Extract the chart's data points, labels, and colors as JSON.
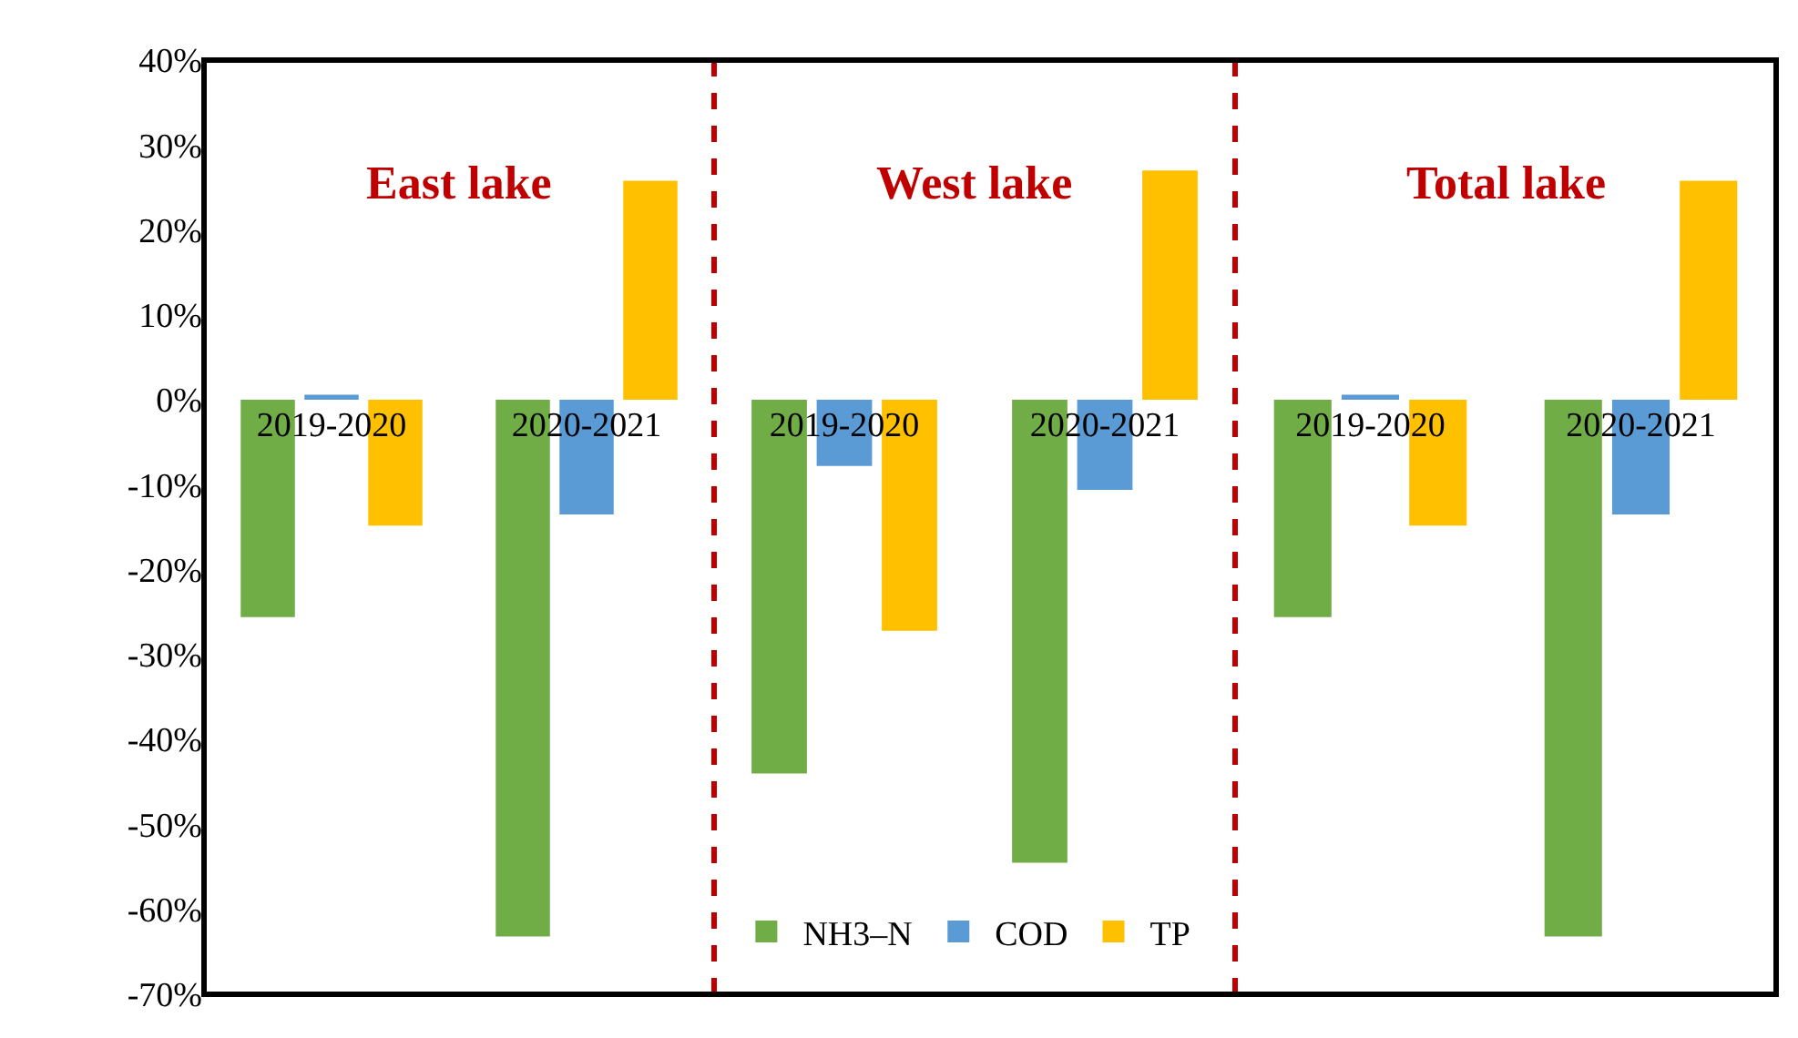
{
  "chart_data": [
    {
      "type": "bar",
      "title": "East lake",
      "categories": [
        "2019-2020",
        "2020-2021"
      ],
      "legend": "bottom",
      "ylim": [
        -70,
        40
      ],
      "yticks": [
        {
          "value": 40,
          "label": "40%"
        },
        {
          "value": 30,
          "label": "30%"
        },
        {
          "value": 20,
          "label": "20%"
        },
        {
          "value": 10,
          "label": "10%"
        },
        {
          "value": 0,
          "label": "0%"
        },
        {
          "value": -10,
          "label": "-10%"
        },
        {
          "value": -20,
          "label": "-20%"
        },
        {
          "value": -30,
          "label": "-30%"
        },
        {
          "value": -40,
          "label": "-40%"
        },
        {
          "value": -50,
          "label": "-50%"
        },
        {
          "value": -60,
          "label": "-60%"
        },
        {
          "value": -70,
          "label": "-70%"
        }
      ],
      "series": [
        {
          "name": "NH3–N",
          "color": "#70ad47",
          "values": [
            -25.6,
            -63.2
          ]
        },
        {
          "name": "COD",
          "color": "#5b9bd5",
          "values": [
            0.6,
            -13.5
          ]
        },
        {
          "name": "TP",
          "color": "#ffc000",
          "values": [
            -14.8,
            25.8
          ]
        }
      ]
    },
    {
      "type": "bar",
      "title": "West lake",
      "categories": [
        "2019-2020",
        "2020-2021"
      ],
      "tick_labels": "x",
      "ylim": [
        -70,
        40
      ],
      "series": [
        {
          "color": "#70ad47",
          "values": [
            -44,
            -54.5
          ]
        },
        {
          "color": "#5b9bd5",
          "values": [
            -7.8,
            -10.6
          ]
        },
        {
          "color": "#ffc000",
          "values": [
            -27.2,
            27
          ]
        }
      ]
    },
    {
      "type": "bar",
      "title": "Total lake",
      "categories": [
        "2019-2020",
        "2020-2021"
      ],
      "tick_labels": "x",
      "ylim": [
        -70,
        40
      ],
      "series": [
        {
          "color": "#70ad47",
          "values": [
            -25.6,
            -63.2
          ]
        },
        {
          "color": "#5b9bd5",
          "values": [
            0.6,
            -13.5
          ]
        },
        {
          "color": "#ffc000",
          "values": [
            -14.8,
            25.8
          ]
        }
      ]
    }
  ]
}
